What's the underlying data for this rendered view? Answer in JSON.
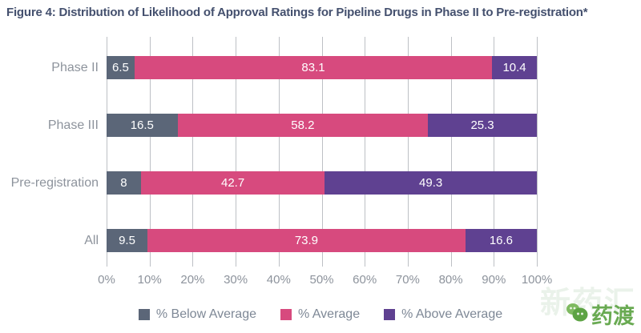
{
  "title": "Figure 4: Distribution of Likelihood of Approval Ratings for Pipeline Drugs in Phase II to Pre-registration*",
  "colors": {
    "below_average": "#5b6678",
    "average": "#d74a7e",
    "above_average": "#5f4191",
    "title_text": "#44506e",
    "axis_text": "#8d939c",
    "gridline": "#bdc0c5",
    "value_text": "#ffffff",
    "logo_green": "#69aa52"
  },
  "chart_data": {
    "type": "bar",
    "orientation": "horizontal",
    "stacked": true,
    "title": "Figure 4: Distribution of Likelihood of Approval Ratings for Pipeline Drugs in Phase II to Pre-registration*",
    "categories": [
      "Phase II",
      "Phase III",
      "Pre-registration",
      "All"
    ],
    "series": [
      {
        "name": "% Below Average",
        "color_key": "below_average",
        "values": [
          6.5,
          16.5,
          8,
          9.5
        ]
      },
      {
        "name": "% Average",
        "color_key": "average",
        "values": [
          83.1,
          58.2,
          42.7,
          73.9
        ]
      },
      {
        "name": "% Above Average",
        "color_key": "above_average",
        "values": [
          10.4,
          25.3,
          49.3,
          16.6
        ]
      }
    ],
    "xlim": [
      0,
      100
    ],
    "x_tick_labels": [
      "0%",
      "10%",
      "20%",
      "30%",
      "40%",
      "50%",
      "60%",
      "70%",
      "80%",
      "90%",
      "100%"
    ],
    "grid": true,
    "legend_position": "bottom",
    "value_labels_shown": true
  },
  "watermark": {
    "background_text": "新药汇",
    "logo_text": "药渡"
  }
}
